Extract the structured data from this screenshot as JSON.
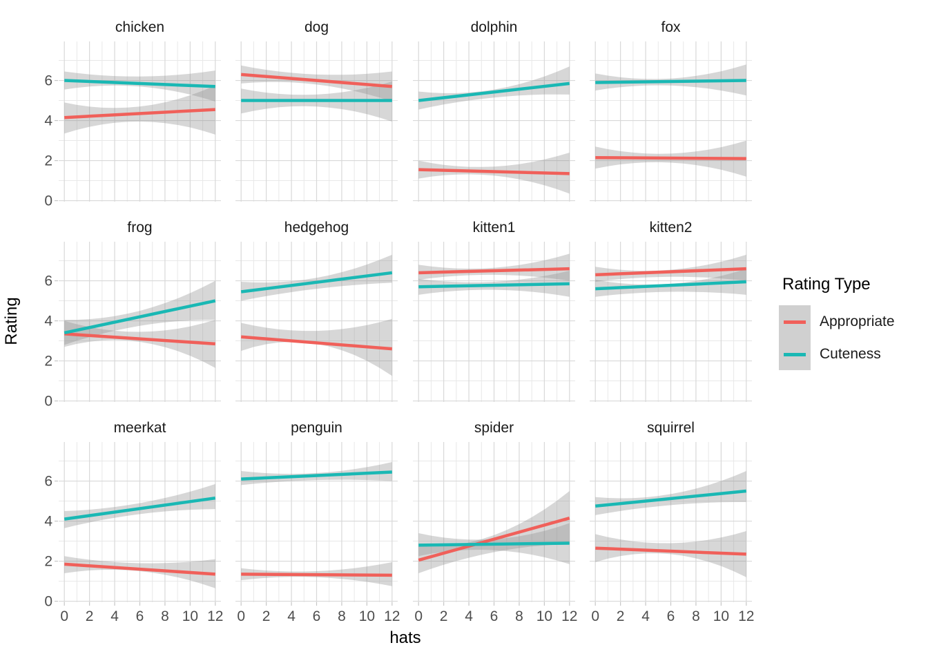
{
  "legend": {
    "title": "Rating Type",
    "items": [
      {
        "label": "Appropriate",
        "color": "#F0605A"
      },
      {
        "label": "Cuteness",
        "color": "#1AB8B4"
      }
    ]
  },
  "chart_data": {
    "type": "line",
    "title": "",
    "xlabel": "hats",
    "ylabel": "Rating",
    "x_range": [
      0,
      12
    ],
    "x_ticks": [
      0,
      2,
      4,
      6,
      8,
      10,
      12
    ],
    "y_ticks": [
      0,
      2,
      4,
      6
    ],
    "y_domain": [
      -0.05,
      7.95
    ],
    "grid": "major-minor",
    "legend_position": "right",
    "series_colors": {
      "Appropriate": "#F0605A",
      "Cuteness": "#1AB8B4"
    },
    "band_fill": "rgba(140,140,140,0.35)",
    "band_x": [
      0,
      6,
      12
    ],
    "facets": [
      {
        "label": "chicken",
        "series": [
          {
            "name": "Appropriate",
            "start": 4.15,
            "end": 4.55,
            "band_upper": [
              4.9,
              4.7,
              5.75
            ],
            "band_lower": [
              3.35,
              3.95,
              3.3
            ]
          },
          {
            "name": "Cuteness",
            "start": 6.0,
            "end": 5.7,
            "band_upper": [
              6.45,
              6.2,
              6.5
            ],
            "band_lower": [
              5.55,
              5.7,
              4.95
            ]
          }
        ]
      },
      {
        "label": "dog",
        "series": [
          {
            "name": "Appropriate",
            "start": 6.3,
            "end": 5.7,
            "band_upper": [
              6.75,
              6.3,
              6.45
            ],
            "band_lower": [
              5.85,
              5.8,
              4.95
            ]
          },
          {
            "name": "Cuteness",
            "start": 5.0,
            "end": 5.0,
            "band_upper": [
              5.6,
              5.3,
              5.95
            ],
            "band_lower": [
              4.35,
              4.7,
              3.95
            ]
          }
        ]
      },
      {
        "label": "dolphin",
        "series": [
          {
            "name": "Appropriate",
            "start": 1.55,
            "end": 1.35,
            "band_upper": [
              2.0,
              1.7,
              2.4
            ],
            "band_lower": [
              1.1,
              1.25,
              0.35
            ]
          },
          {
            "name": "Cuteness",
            "start": 5.0,
            "end": 5.85,
            "band_upper": [
              5.45,
              5.55,
              6.7
            ],
            "band_lower": [
              4.55,
              5.15,
              5.3
            ]
          }
        ]
      },
      {
        "label": "fox",
        "series": [
          {
            "name": "Appropriate",
            "start": 2.15,
            "end": 2.1,
            "band_upper": [
              2.7,
              2.35,
              3.0
            ],
            "band_lower": [
              1.6,
              1.9,
              1.2
            ]
          },
          {
            "name": "Cuteness",
            "start": 5.9,
            "end": 6.0,
            "band_upper": [
              6.35,
              6.1,
              6.8
            ],
            "band_lower": [
              5.5,
              5.75,
              5.25
            ]
          }
        ]
      },
      {
        "label": "frog",
        "series": [
          {
            "name": "Appropriate",
            "start": 3.35,
            "end": 2.85,
            "band_upper": [
              4.0,
              3.45,
              4.05
            ],
            "band_lower": [
              2.7,
              2.95,
              1.65
            ]
          },
          {
            "name": "Cuteness",
            "start": 3.4,
            "end": 5.0,
            "band_upper": [
              4.05,
              4.5,
              6.0
            ],
            "band_lower": [
              2.8,
              3.75,
              4.05
            ]
          }
        ]
      },
      {
        "label": "hedgehog",
        "series": [
          {
            "name": "Appropriate",
            "start": 3.2,
            "end": 2.6,
            "band_upper": [
              3.9,
              3.5,
              4.1
            ],
            "band_lower": [
              2.5,
              2.85,
              1.25
            ]
          },
          {
            "name": "Cuteness",
            "start": 5.45,
            "end": 6.4,
            "band_upper": [
              5.95,
              6.15,
              7.3
            ],
            "band_lower": [
              5.0,
              5.6,
              5.9
            ]
          }
        ]
      },
      {
        "label": "kitten1",
        "series": [
          {
            "name": "Appropriate",
            "start": 6.4,
            "end": 6.6,
            "band_upper": [
              6.8,
              6.65,
              7.35
            ],
            "band_lower": [
              6.05,
              6.3,
              6.0
            ]
          },
          {
            "name": "Cuteness",
            "start": 5.7,
            "end": 5.85,
            "band_upper": [
              6.1,
              5.95,
              6.5
            ],
            "band_lower": [
              5.3,
              5.55,
              5.2
            ]
          }
        ]
      },
      {
        "label": "kitten2",
        "series": [
          {
            "name": "Appropriate",
            "start": 6.3,
            "end": 6.6,
            "band_upper": [
              6.7,
              6.55,
              7.3
            ],
            "band_lower": [
              5.95,
              6.2,
              6.0
            ]
          },
          {
            "name": "Cuteness",
            "start": 5.6,
            "end": 5.95,
            "band_upper": [
              6.05,
              5.85,
              6.6
            ],
            "band_lower": [
              5.2,
              5.45,
              5.3
            ]
          }
        ]
      },
      {
        "label": "meerkat",
        "series": [
          {
            "name": "Appropriate",
            "start": 1.85,
            "end": 1.35,
            "band_upper": [
              2.25,
              1.9,
              2.1
            ],
            "band_lower": [
              1.4,
              1.5,
              0.65
            ]
          },
          {
            "name": "Cuteness",
            "start": 4.1,
            "end": 5.15,
            "band_upper": [
              4.5,
              4.9,
              5.85
            ],
            "band_lower": [
              3.65,
              4.35,
              4.6
            ]
          }
        ]
      },
      {
        "label": "penguin",
        "series": [
          {
            "name": "Appropriate",
            "start": 1.35,
            "end": 1.3,
            "band_upper": [
              1.65,
              1.5,
              1.95
            ],
            "band_lower": [
              1.05,
              1.2,
              0.75
            ]
          },
          {
            "name": "Cuteness",
            "start": 6.1,
            "end": 6.45,
            "band_upper": [
              6.5,
              6.4,
              6.95
            ],
            "band_lower": [
              5.8,
              6.05,
              6.0
            ]
          }
        ]
      },
      {
        "label": "spider",
        "series": [
          {
            "name": "Appropriate",
            "start": 2.05,
            "end": 4.15,
            "band_upper": [
              2.75,
              3.3,
              5.5
            ],
            "band_lower": [
              1.4,
              2.45,
              2.85
            ]
          },
          {
            "name": "Cuteness",
            "start": 2.8,
            "end": 2.9,
            "band_upper": [
              3.4,
              3.1,
              3.9
            ],
            "band_lower": [
              2.25,
              2.55,
              1.85
            ]
          }
        ]
      },
      {
        "label": "squirrel",
        "series": [
          {
            "name": "Appropriate",
            "start": 2.65,
            "end": 2.35,
            "band_upper": [
              3.35,
              2.9,
              3.5
            ],
            "band_lower": [
              1.95,
              2.35,
              1.2
            ]
          },
          {
            "name": "Cuteness",
            "start": 4.75,
            "end": 5.5,
            "band_upper": [
              5.2,
              5.35,
              6.5
            ],
            "band_lower": [
              4.3,
              4.8,
              4.95
            ]
          }
        ]
      }
    ]
  }
}
